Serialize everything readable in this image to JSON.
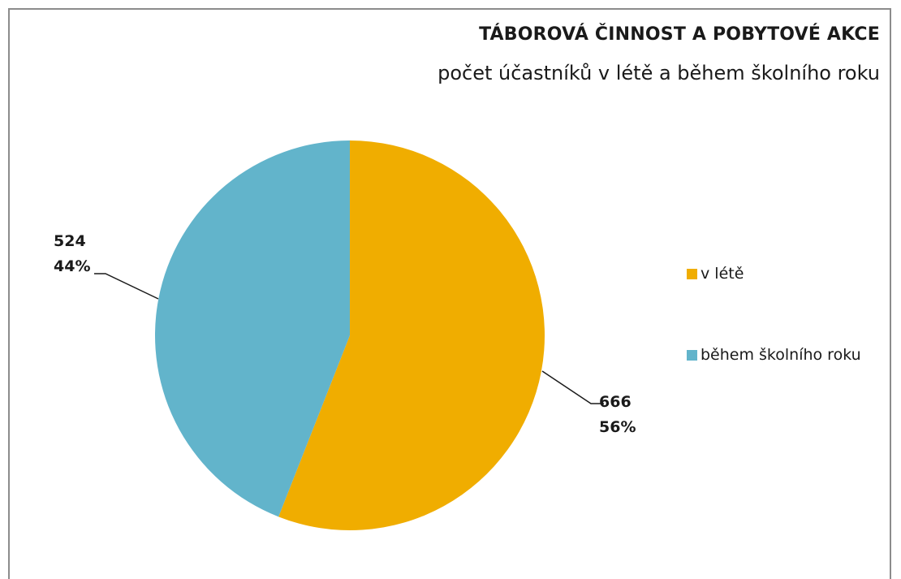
{
  "chart_data": {
    "type": "pie",
    "title": "TÁBOROVÁ ČINNOST A POBYTOVÉ AKCE",
    "subtitle": "počet účastníků v létě a během školního roku",
    "categories": [
      "v létě",
      "během školního roku"
    ],
    "values": [
      666,
      524
    ],
    "percent_labels": [
      "56%",
      "44%"
    ],
    "value_labels": [
      "666",
      "524"
    ],
    "colors": [
      "#F0AD00",
      "#62B4CB"
    ],
    "legend": "right"
  }
}
